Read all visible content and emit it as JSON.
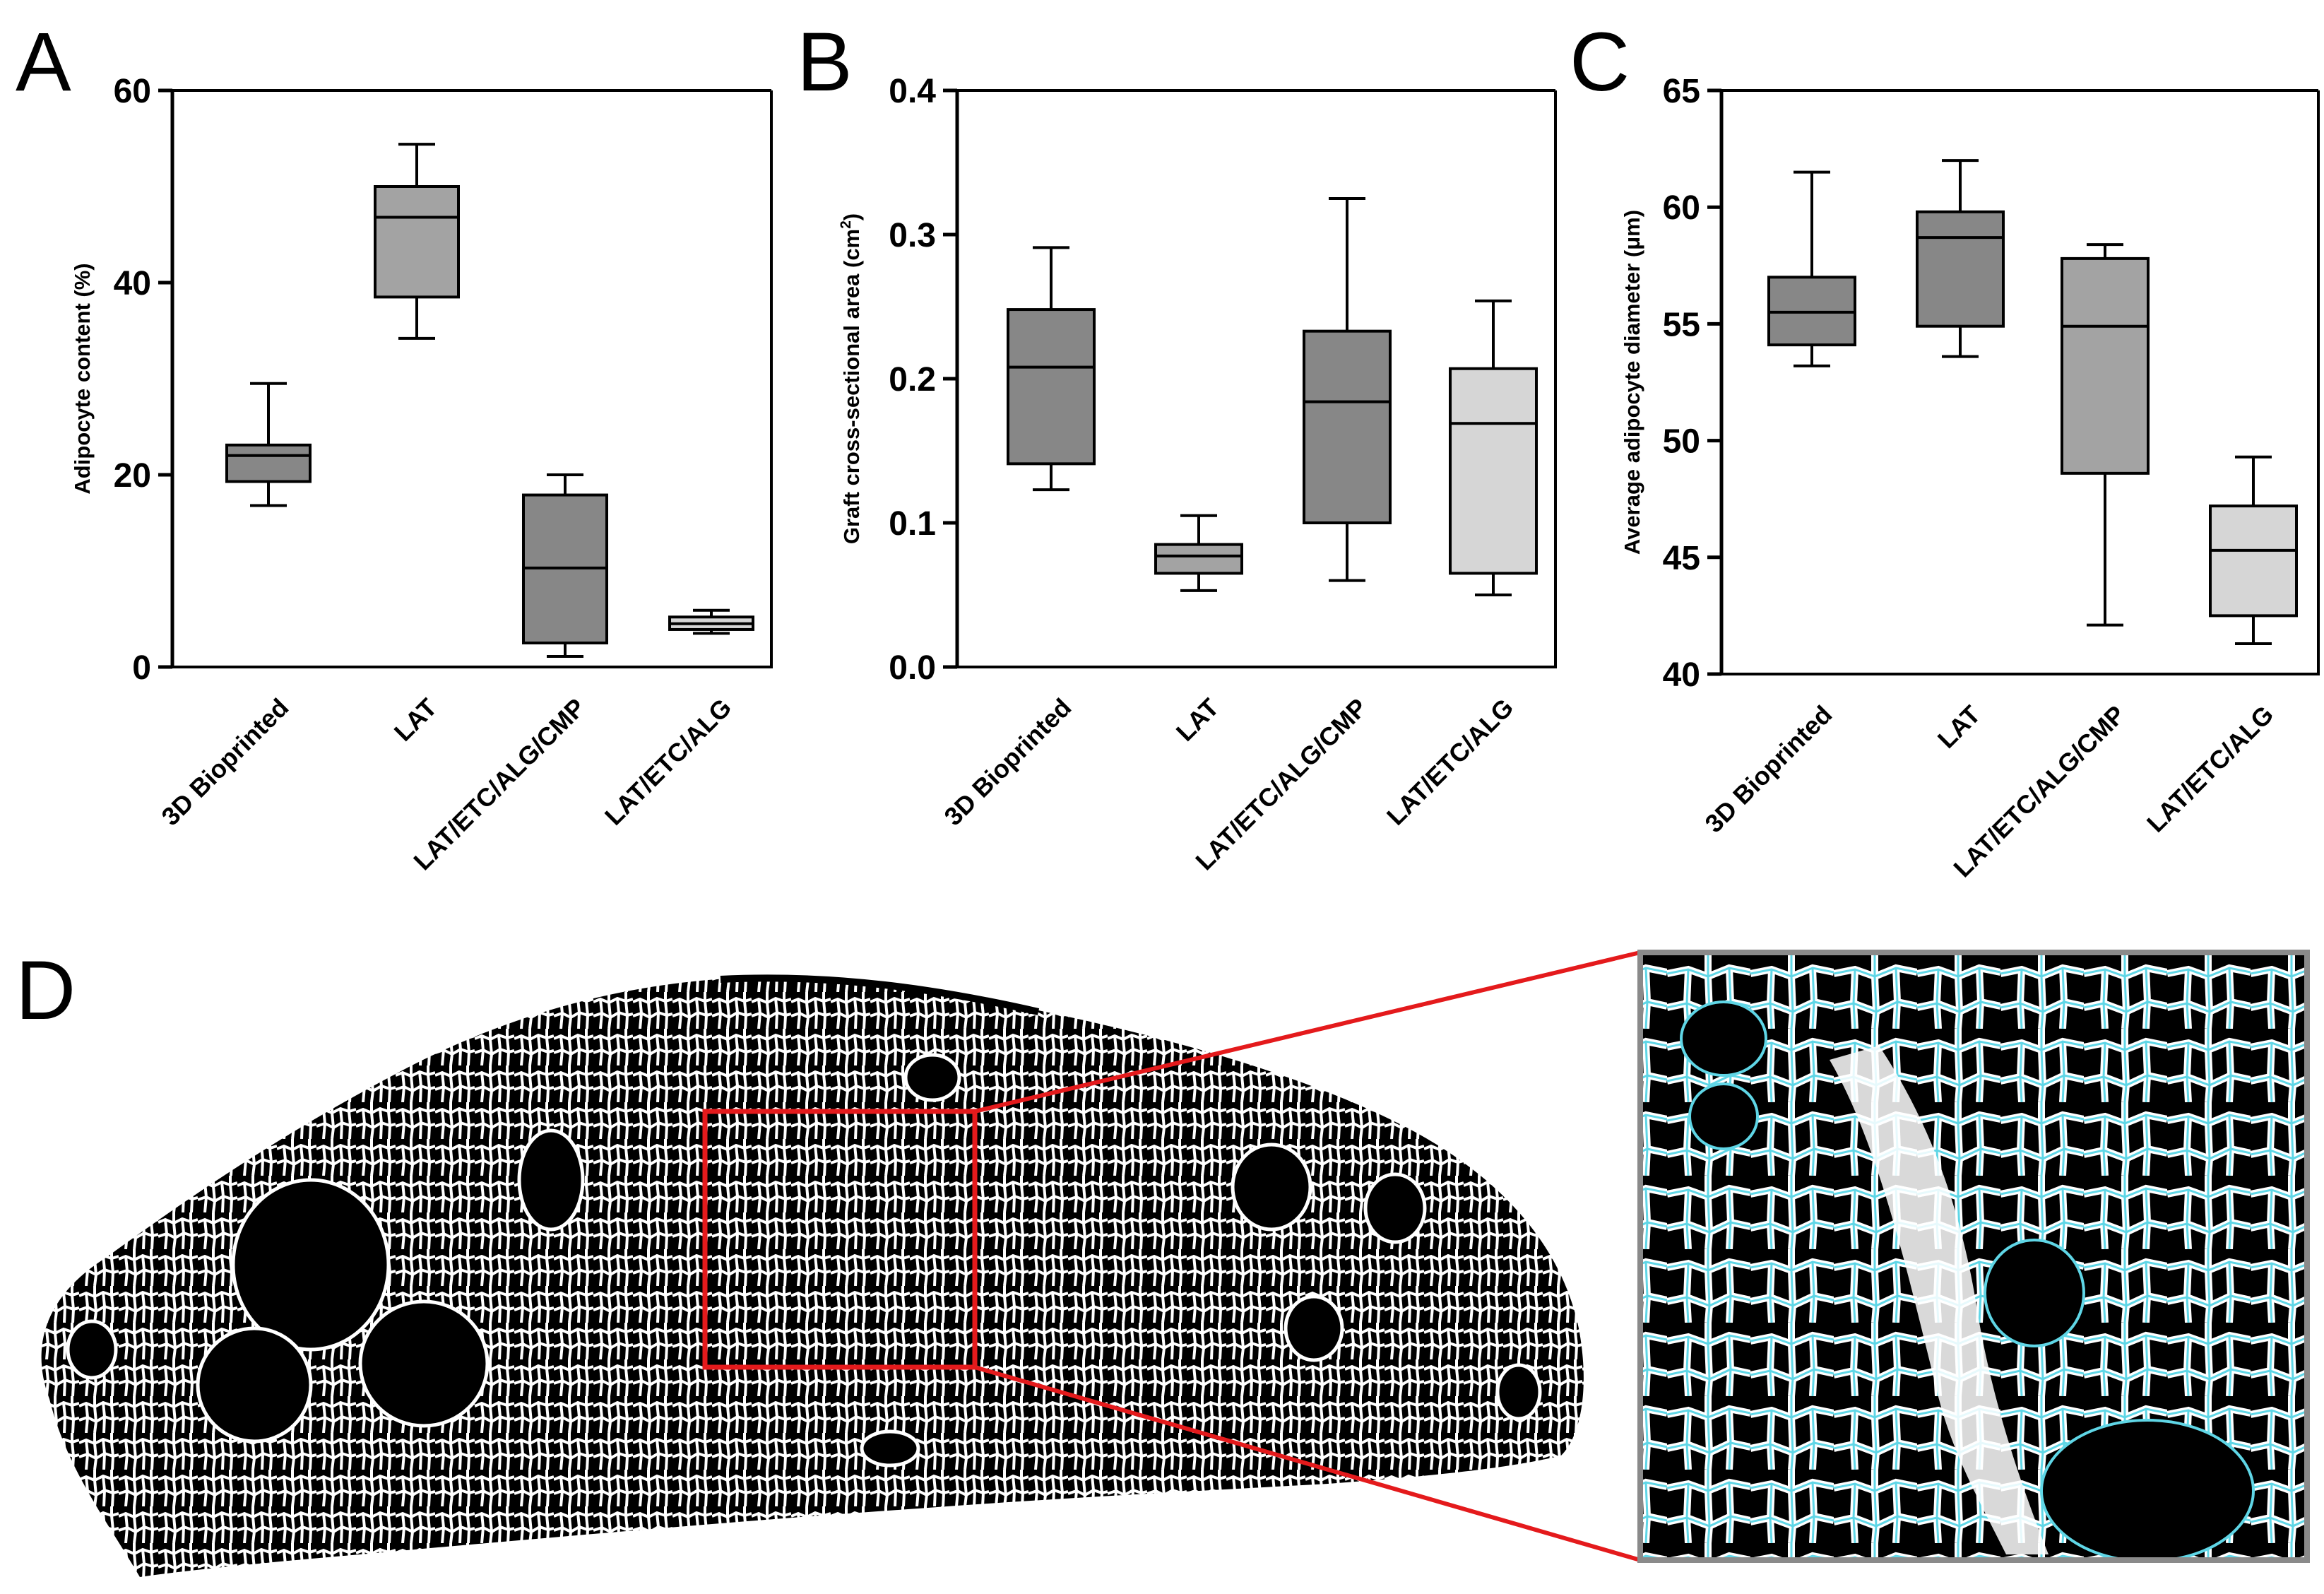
{
  "panel_d": {
    "letter": "D"
  },
  "chart_data": [
    {
      "type": "boxplot",
      "panel_label": "A",
      "title": "",
      "xlabel": "",
      "ylabel": "Adipocyte content (%)",
      "ylim": [
        0,
        60
      ],
      "yticks": [
        0,
        20,
        40,
        60
      ],
      "ytick_labels": [
        "0",
        "20",
        "40",
        "60"
      ],
      "grid": false,
      "categories": [
        "3D Bioprinted",
        "LAT",
        "LAT/ETC/ALG/CMP",
        "LAT/ETC/ALG"
      ],
      "boxes": [
        {
          "min": 16.8,
          "q1": 19.3,
          "median": 22.0,
          "q3": 23.1,
          "max": 29.5,
          "color": "#878787"
        },
        {
          "min": 34.2,
          "q1": 38.5,
          "median": 46.8,
          "q3": 50.0,
          "max": 54.4,
          "color": "#a3a3a3"
        },
        {
          "min": 1.1,
          "q1": 2.5,
          "median": 10.3,
          "q3": 17.9,
          "max": 20.0,
          "color": "#878787"
        },
        {
          "min": 3.5,
          "q1": 3.9,
          "median": 4.5,
          "q3": 5.2,
          "max": 5.9,
          "color": "#d6d6d6"
        }
      ]
    },
    {
      "type": "boxplot",
      "panel_label": "B",
      "title": "",
      "xlabel": "",
      "ylabel": "Graft cross-sectional area (cm",
      "ylabel_sup": "2",
      "ylabel_end": ")",
      "ylim": [
        0,
        0.4
      ],
      "yticks": [
        0,
        0.1,
        0.2,
        0.3,
        0.4
      ],
      "ytick_labels": [
        "0.0",
        "0.1",
        "0.2",
        "0.3",
        "0.4"
      ],
      "grid": false,
      "categories": [
        "3D Bioprinted",
        "LAT",
        "LAT/ETC/ALG/CMP",
        "LAT/ETC/ALG"
      ],
      "boxes": [
        {
          "min": 0.123,
          "q1": 0.141,
          "median": 0.208,
          "q3": 0.248,
          "max": 0.291,
          "color": "#878787"
        },
        {
          "min": 0.053,
          "q1": 0.065,
          "median": 0.077,
          "q3": 0.085,
          "max": 0.105,
          "color": "#a3a3a3"
        },
        {
          "min": 0.06,
          "q1": 0.1,
          "median": 0.184,
          "q3": 0.233,
          "max": 0.325,
          "color": "#878787"
        },
        {
          "min": 0.05,
          "q1": 0.065,
          "median": 0.169,
          "q3": 0.207,
          "max": 0.254,
          "color": "#d6d6d6"
        }
      ]
    },
    {
      "type": "boxplot",
      "panel_label": "C",
      "title": "",
      "xlabel": "",
      "ylabel": "Average adipocyte diameter (μm)",
      "ylim": [
        40,
        65
      ],
      "yticks": [
        40,
        45,
        50,
        55,
        60,
        65
      ],
      "ytick_labels": [
        "40",
        "45",
        "50",
        "55",
        "60",
        "65"
      ],
      "grid": false,
      "categories": [
        "3D Bioprinted",
        "LAT",
        "LAT/ETC/ALG/CMP",
        "LAT/ETC/ALG"
      ],
      "boxes": [
        {
          "min": 53.2,
          "q1": 54.1,
          "median": 55.5,
          "q3": 57.0,
          "max": 61.5,
          "color": "#878787"
        },
        {
          "min": 53.6,
          "q1": 54.9,
          "median": 58.7,
          "q3": 59.8,
          "max": 62.0,
          "color": "#878787"
        },
        {
          "min": 42.1,
          "q1": 48.6,
          "median": 54.9,
          "q3": 57.8,
          "max": 58.4,
          "color": "#a3a3a3"
        },
        {
          "min": 41.3,
          "q1": 42.5,
          "median": 45.3,
          "q3": 47.2,
          "max": 49.3,
          "color": "#d6d6d6"
        }
      ]
    }
  ]
}
